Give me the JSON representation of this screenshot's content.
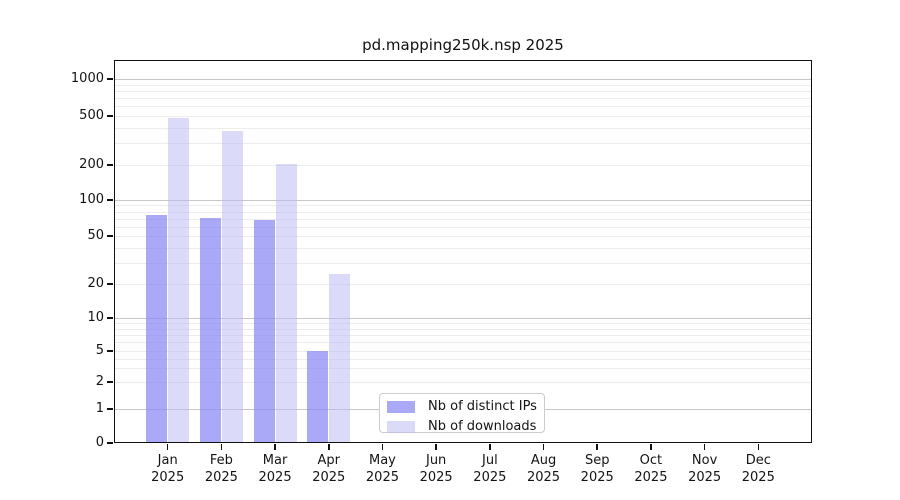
{
  "title": "pd.mapping250k.nsp 2025",
  "chart_data": {
    "type": "bar",
    "title": "pd.mapping250k.nsp 2025",
    "categories": [
      "Jan",
      "Feb",
      "Mar",
      "Apr",
      "May",
      "Jun",
      "Jul",
      "Aug",
      "Sep",
      "Oct",
      "Nov",
      "Dec"
    ],
    "x_tick_year": "2025",
    "series": [
      {
        "name": "Nb of distinct IPs",
        "color": "rgba(140,140,244,0.75)",
        "color_hex_on_white": "#a9a9f7",
        "values": [
          75,
          71,
          68,
          5,
          0,
          0,
          0,
          0,
          0,
          0,
          0,
          0
        ]
      },
      {
        "name": "Nb of downloads",
        "color": "rgba(183,183,243,0.5)",
        "color_hex_on_white": "#dbdbf9",
        "values": [
          480,
          378,
          205,
          24,
          0,
          0,
          0,
          0,
          0,
          0,
          0,
          0
        ]
      }
    ],
    "yscale": "symlog",
    "yticks": [
      0,
      1,
      2,
      5,
      10,
      20,
      50,
      100,
      200,
      500,
      1000
    ],
    "ymajor_gridlines": [
      1,
      10,
      100,
      1000
    ],
    "ylim": [
      0,
      1400
    ],
    "grid": true,
    "legend_position": "bottom-center",
    "legend_labels": [
      "Nb of distinct IPs",
      "Nb of downloads"
    ]
  }
}
